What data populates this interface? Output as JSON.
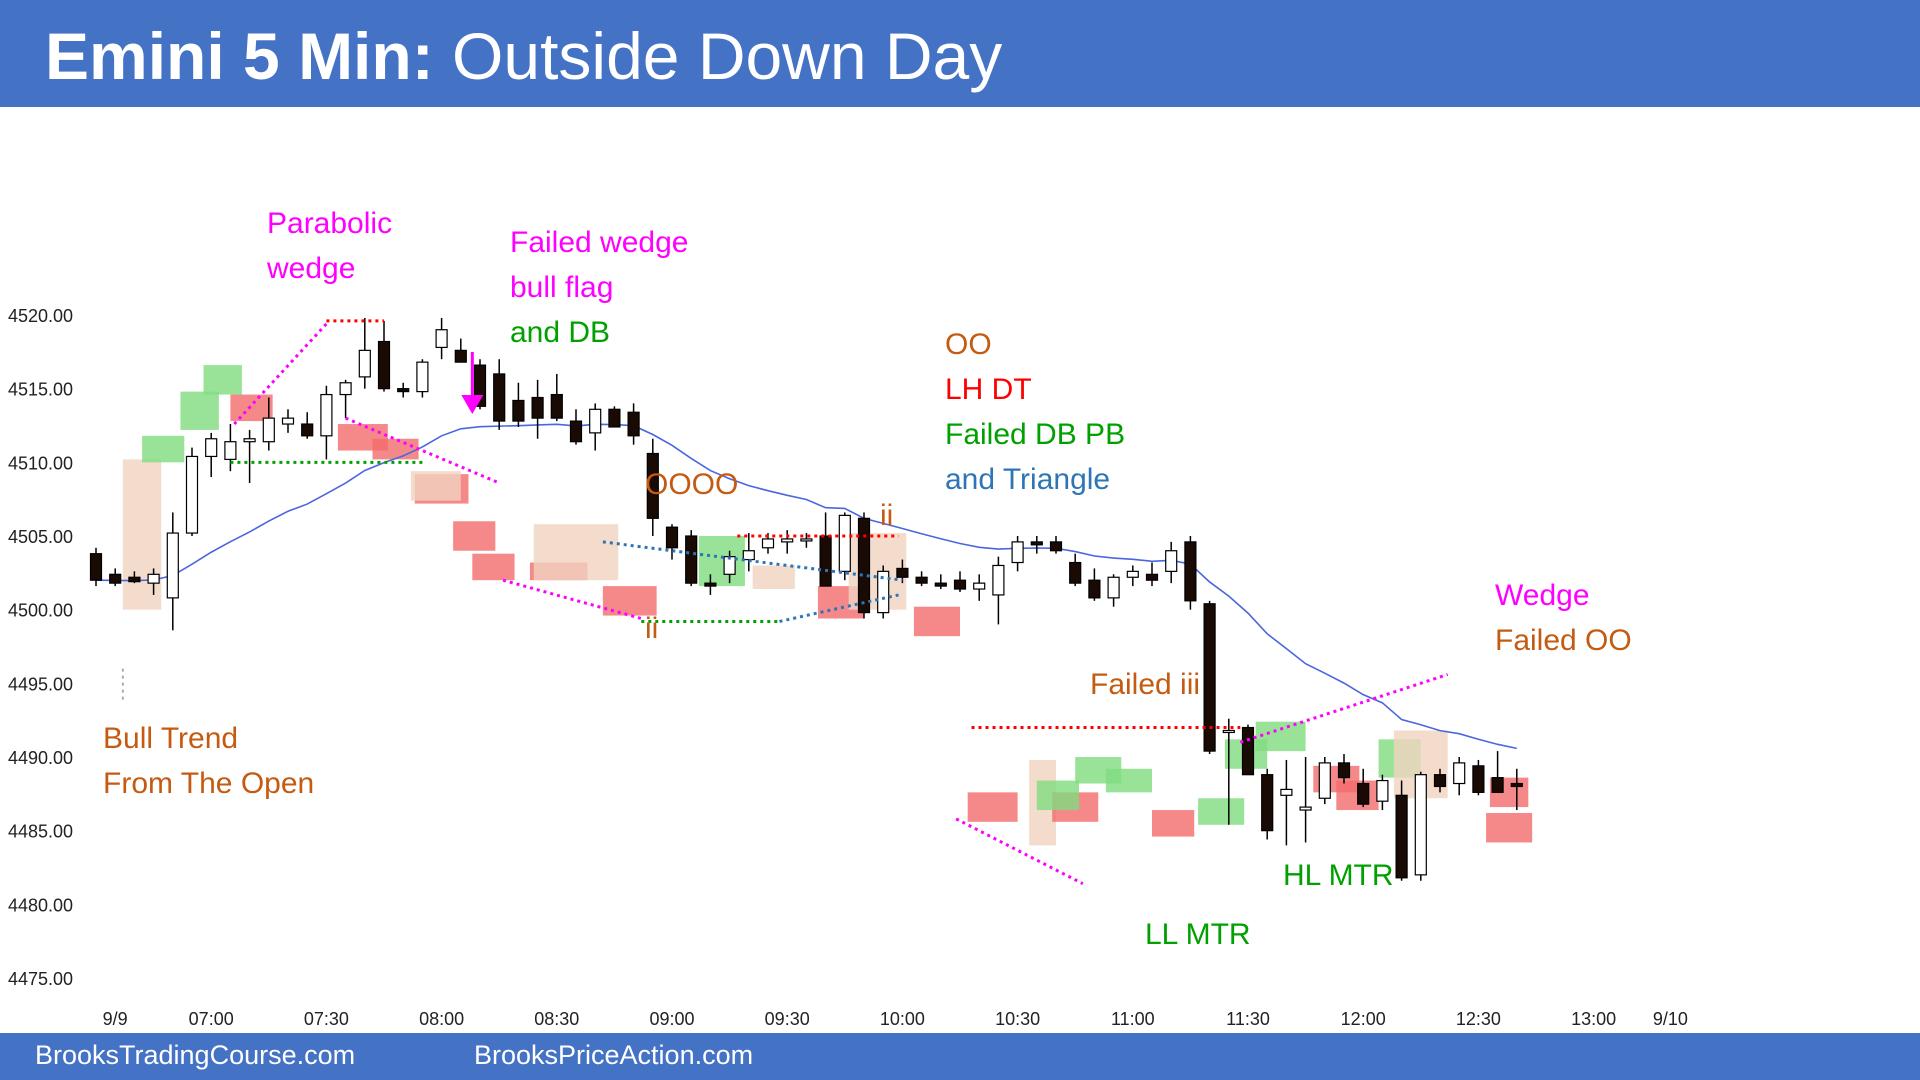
{
  "header": {
    "title_bold": "Emini 5 Min:",
    "title_rest": " Outside Down Day"
  },
  "footer": {
    "left": "BrooksTradingCourse.com",
    "right": "BrooksPriceAction.com"
  },
  "chart_data": {
    "type": "candlestick",
    "title": "Emini 5 Min: Outside Down Day",
    "ylim": [
      4475,
      4520
    ],
    "y_ticks": [
      "4520.00",
      "4515.00",
      "4510.00",
      "4505.00",
      "4500.00",
      "4495.00",
      "4490.00",
      "4485.00",
      "4480.00",
      "4475.00"
    ],
    "y_tick_values": [
      4520,
      4515,
      4510,
      4505,
      4500,
      4495,
      4490,
      4485,
      4480,
      4475
    ],
    "x_ticks": [
      {
        "label": "9/9",
        "bar": 1
      },
      {
        "label": "07:00",
        "bar": 6
      },
      {
        "label": "07:30",
        "bar": 12
      },
      {
        "label": "08:00",
        "bar": 18
      },
      {
        "label": "08:30",
        "bar": 24
      },
      {
        "label": "09:00",
        "bar": 30
      },
      {
        "label": "09:30",
        "bar": 36
      },
      {
        "label": "10:00",
        "bar": 42
      },
      {
        "label": "10:30",
        "bar": 48
      },
      {
        "label": "11:00",
        "bar": 54
      },
      {
        "label": "11:30",
        "bar": 60
      },
      {
        "label": "12:00",
        "bar": 66
      },
      {
        "label": "12:30",
        "bar": 72
      },
      {
        "label": "13:00",
        "bar": 78
      },
      {
        "label": "9/10",
        "bar": 82
      }
    ],
    "candles": [
      {
        "o": 4503.8,
        "h": 4504.2,
        "l": 4501.6,
        "c": 4502.0
      },
      {
        "o": 4502.4,
        "h": 4502.8,
        "l": 4501.6,
        "c": 4501.8
      },
      {
        "o": 4502.2,
        "h": 4502.6,
        "l": 4501.8,
        "c": 4501.9
      },
      {
        "o": 4501.8,
        "h": 4502.8,
        "l": 4501.0,
        "c": 4502.4
      },
      {
        "o": 4500.8,
        "h": 4506.6,
        "l": 4498.6,
        "c": 4505.2
      },
      {
        "o": 4505.2,
        "h": 4511.0,
        "l": 4505.0,
        "c": 4510.4
      },
      {
        "o": 4510.4,
        "h": 4512.0,
        "l": 4509.0,
        "c": 4511.6
      },
      {
        "o": 4510.2,
        "h": 4512.6,
        "l": 4509.4,
        "c": 4511.4
      },
      {
        "o": 4511.4,
        "h": 4512.2,
        "l": 4508.6,
        "c": 4511.6
      },
      {
        "o": 4511.4,
        "h": 4514.4,
        "l": 4510.8,
        "c": 4513.0
      },
      {
        "o": 4512.6,
        "h": 4513.6,
        "l": 4512.0,
        "c": 4513.0
      },
      {
        "o": 4512.6,
        "h": 4513.4,
        "l": 4511.6,
        "c": 4511.8
      },
      {
        "o": 4511.8,
        "h": 4515.2,
        "l": 4510.2,
        "c": 4514.6
      },
      {
        "o": 4514.6,
        "h": 4515.6,
        "l": 4513.0,
        "c": 4515.4
      },
      {
        "o": 4515.8,
        "h": 4519.8,
        "l": 4515.0,
        "c": 4517.6
      },
      {
        "o": 4518.2,
        "h": 4519.6,
        "l": 4514.8,
        "c": 4515.0
      },
      {
        "o": 4515.0,
        "h": 4515.4,
        "l": 4514.4,
        "c": 4514.8
      },
      {
        "o": 4514.8,
        "h": 4517.0,
        "l": 4514.4,
        "c": 4516.8
      },
      {
        "o": 4517.8,
        "h": 4519.8,
        "l": 4517.0,
        "c": 4519.0
      },
      {
        "o": 4517.6,
        "h": 4518.4,
        "l": 4517.0,
        "c": 4516.8
      },
      {
        "o": 4516.6,
        "h": 4517.0,
        "l": 4513.6,
        "c": 4513.8
      },
      {
        "o": 4516.0,
        "h": 4517.0,
        "l": 4512.2,
        "c": 4512.8
      },
      {
        "o": 4514.2,
        "h": 4515.4,
        "l": 4512.4,
        "c": 4512.8
      },
      {
        "o": 4514.4,
        "h": 4515.6,
        "l": 4511.6,
        "c": 4513.0
      },
      {
        "o": 4514.6,
        "h": 4516.0,
        "l": 4512.8,
        "c": 4513.0
      },
      {
        "o": 4512.8,
        "h": 4513.6,
        "l": 4511.2,
        "c": 4511.4
      },
      {
        "o": 4512.0,
        "h": 4514.0,
        "l": 4510.8,
        "c": 4513.6
      },
      {
        "o": 4513.6,
        "h": 4513.8,
        "l": 4512.6,
        "c": 4512.4
      },
      {
        "o": 4513.4,
        "h": 4514.0,
        "l": 4511.2,
        "c": 4511.8
      },
      {
        "o": 4510.6,
        "h": 4511.6,
        "l": 4505.0,
        "c": 4506.2
      },
      {
        "o": 4505.6,
        "h": 4505.8,
        "l": 4503.4,
        "c": 4504.2
      },
      {
        "o": 4505.0,
        "h": 4505.4,
        "l": 4501.6,
        "c": 4501.8
      },
      {
        "o": 4501.8,
        "h": 4502.4,
        "l": 4501.0,
        "c": 4501.6
      },
      {
        "o": 4502.4,
        "h": 4504.0,
        "l": 4501.8,
        "c": 4503.6
      },
      {
        "o": 4503.4,
        "h": 4505.2,
        "l": 4502.6,
        "c": 4504.0
      },
      {
        "o": 4504.2,
        "h": 4505.2,
        "l": 4503.8,
        "c": 4504.8
      },
      {
        "o": 4504.6,
        "h": 4505.4,
        "l": 4503.8,
        "c": 4504.8
      },
      {
        "o": 4504.8,
        "h": 4505.2,
        "l": 4504.2,
        "c": 4504.8
      },
      {
        "o": 4505.0,
        "h": 4506.6,
        "l": 4501.8,
        "c": 4501.6
      },
      {
        "o": 4502.6,
        "h": 4506.6,
        "l": 4502.0,
        "c": 4506.4
      },
      {
        "o": 4506.2,
        "h": 4506.6,
        "l": 4499.4,
        "c": 4499.8
      },
      {
        "o": 4499.8,
        "h": 4503.0,
        "l": 4499.4,
        "c": 4502.6
      },
      {
        "o": 4502.8,
        "h": 4503.4,
        "l": 4501.8,
        "c": 4502.2
      },
      {
        "o": 4502.2,
        "h": 4502.6,
        "l": 4501.6,
        "c": 4501.8
      },
      {
        "o": 4501.8,
        "h": 4502.4,
        "l": 4501.4,
        "c": 4501.6
      },
      {
        "o": 4502.0,
        "h": 4502.6,
        "l": 4501.2,
        "c": 4501.4
      },
      {
        "o": 4501.4,
        "h": 4502.4,
        "l": 4500.6,
        "c": 4501.8
      },
      {
        "o": 4501.0,
        "h": 4503.6,
        "l": 4499.0,
        "c": 4503.0
      },
      {
        "o": 4503.2,
        "h": 4505.0,
        "l": 4502.6,
        "c": 4504.6
      },
      {
        "o": 4504.6,
        "h": 4505.0,
        "l": 4503.8,
        "c": 4504.4
      },
      {
        "o": 4504.6,
        "h": 4505.0,
        "l": 4503.8,
        "c": 4504.0
      },
      {
        "o": 4503.2,
        "h": 4503.8,
        "l": 4501.6,
        "c": 4501.8
      },
      {
        "o": 4502.0,
        "h": 4502.8,
        "l": 4500.6,
        "c": 4500.8
      },
      {
        "o": 4500.8,
        "h": 4502.4,
        "l": 4500.2,
        "c": 4502.2
      },
      {
        "o": 4502.2,
        "h": 4503.0,
        "l": 4501.6,
        "c": 4502.6
      },
      {
        "o": 4502.4,
        "h": 4503.2,
        "l": 4501.6,
        "c": 4502.0
      },
      {
        "o": 4502.6,
        "h": 4504.6,
        "l": 4501.8,
        "c": 4504.0
      },
      {
        "o": 4504.6,
        "h": 4505.0,
        "l": 4500.0,
        "c": 4500.6
      },
      {
        "o": 4500.4,
        "h": 4500.6,
        "l": 4490.2,
        "c": 4490.4
      },
      {
        "o": 4491.8,
        "h": 4492.6,
        "l": 4485.4,
        "c": 4491.8
      },
      {
        "o": 4492.0,
        "h": 4492.2,
        "l": 4488.8,
        "c": 4488.8
      },
      {
        "o": 4488.8,
        "h": 4489.2,
        "l": 4484.4,
        "c": 4485.0
      },
      {
        "o": 4487.4,
        "h": 4489.8,
        "l": 4484.0,
        "c": 4487.8
      },
      {
        "o": 4486.4,
        "h": 4490.0,
        "l": 4484.2,
        "c": 4486.6
      },
      {
        "o": 4487.2,
        "h": 4490.0,
        "l": 4486.8,
        "c": 4489.6
      },
      {
        "o": 4489.6,
        "h": 4490.2,
        "l": 4488.2,
        "c": 4488.6
      },
      {
        "o": 4488.2,
        "h": 4489.2,
        "l": 4486.6,
        "c": 4486.8
      },
      {
        "o": 4487.0,
        "h": 4488.8,
        "l": 4486.4,
        "c": 4488.4
      },
      {
        "o": 4487.4,
        "h": 4488.4,
        "l": 4481.6,
        "c": 4481.8
      },
      {
        "o": 4482.0,
        "h": 4489.0,
        "l": 4481.6,
        "c": 4488.8
      },
      {
        "o": 4488.8,
        "h": 4489.2,
        "l": 4487.6,
        "c": 4488.0
      },
      {
        "o": 4488.2,
        "h": 4490.0,
        "l": 4487.4,
        "c": 4489.6
      },
      {
        "o": 4489.4,
        "h": 4489.8,
        "l": 4487.4,
        "c": 4487.6
      },
      {
        "o": 4488.6,
        "h": 4490.4,
        "l": 4487.8,
        "c": 4487.6
      },
      {
        "o": 4488.2,
        "h": 4489.2,
        "l": 4486.4,
        "c": 4488.0
      }
    ]
  },
  "annotations": {
    "parabolic_wedge": [
      "Parabolic",
      "wedge"
    ],
    "failed_wedge": [
      "Failed wedge",
      "bull flag",
      "and DB"
    ],
    "oo": "OO",
    "lh_dt": "LH DT",
    "failed_db_pb": "Failed DB PB",
    "and_triangle": "and Triangle",
    "oooo": "OOOO",
    "ii_low": "ii",
    "ii_high": "ii",
    "bull_trend": [
      "Bull Trend",
      "From The Open"
    ],
    "failed_iii": "Failed iii",
    "ll_mtr": "LL MTR",
    "hl_mtr": "HL MTR",
    "wedge": "Wedge",
    "failed_oo": "Failed OO"
  },
  "colors": {
    "header": "#4472c4",
    "magenta": "#ff00ff",
    "orange": "#c55a11",
    "red": "#ff0000",
    "green": "#00a000",
    "blue": "#2e75b6",
    "ema": "#4a66e0",
    "green_box": "#7fdc7f",
    "red_box": "#f26b6b",
    "tan_box": "#f1d3c0"
  }
}
